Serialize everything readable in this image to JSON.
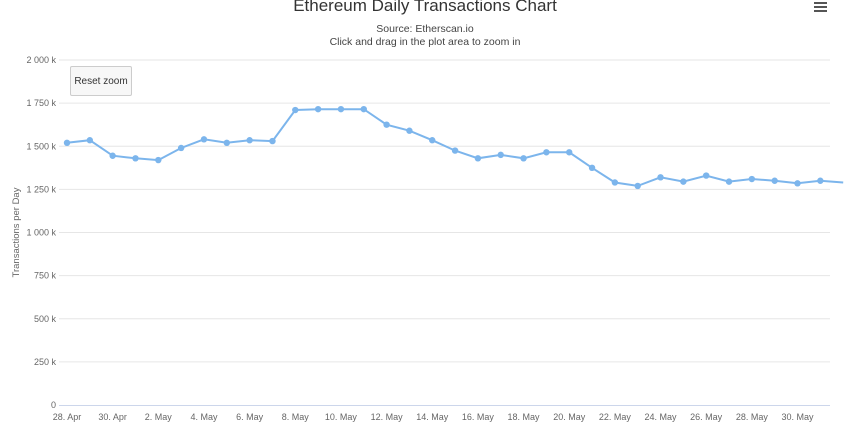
{
  "header": {
    "title": "Ethereum Daily Transactions Chart",
    "source": "Source: Etherscan.io",
    "hint": "Click and drag in the plot area to zoom in"
  },
  "toolbar": {
    "reset_zoom_label": "Reset zoom",
    "menu_icon": "hamburger-menu-icon"
  },
  "colors": {
    "series": "#7cb5ec",
    "grid": "#e6e6e6",
    "axis_text": "#666666"
  },
  "chart_data": {
    "type": "line",
    "title": "Ethereum Daily Transactions Chart",
    "subtitle": "Source: Etherscan.io",
    "xlabel": "",
    "ylabel": "Transactions per Day",
    "ylim": [
      0,
      2000000
    ],
    "y_ticks": [
      {
        "value": 0,
        "label": "0"
      },
      {
        "value": 250000,
        "label": "250 k"
      },
      {
        "value": 500000,
        "label": "500 k"
      },
      {
        "value": 750000,
        "label": "750 k"
      },
      {
        "value": 1000000,
        "label": "1 000 k"
      },
      {
        "value": 1250000,
        "label": "1 250 k"
      },
      {
        "value": 1500000,
        "label": "1 500 k"
      },
      {
        "value": 1750000,
        "label": "1 750 k"
      },
      {
        "value": 2000000,
        "label": "2 000 k"
      }
    ],
    "x_ticks": [
      "28. Apr",
      "30. Apr",
      "2. May",
      "4. May",
      "6. May",
      "8. May",
      "10. May",
      "12. May",
      "14. May",
      "16. May",
      "18. May",
      "20. May",
      "22. May",
      "24. May",
      "26. May",
      "28. May",
      "30. May"
    ],
    "grid": true,
    "legend": "none",
    "series": [
      {
        "x": [
          "28. Apr",
          "29. Apr",
          "30. Apr",
          "1. May",
          "2. May",
          "3. May",
          "4. May",
          "5. May",
          "6. May",
          "7. May",
          "8. May",
          "9. May",
          "10. May",
          "11. May",
          "12. May",
          "13. May",
          "14. May",
          "15. May",
          "16. May",
          "17. May",
          "18. May",
          "19. May",
          "20. May",
          "21. May",
          "22. May",
          "23. May",
          "24. May",
          "25. May",
          "26. May",
          "27. May",
          "28. May",
          "29. May",
          "30. May",
          "31. May",
          "1. Jun"
        ],
        "values": [
          1520000,
          1535000,
          1445000,
          1430000,
          1420000,
          1490000,
          1540000,
          1520000,
          1535000,
          1530000,
          1710000,
          1715000,
          1715000,
          1715000,
          1625000,
          1590000,
          1535000,
          1475000,
          1430000,
          1450000,
          1430000,
          1465000,
          1465000,
          1375000,
          1290000,
          1270000,
          1320000,
          1295000,
          1330000,
          1295000,
          1310000,
          1300000,
          1285000,
          1300000,
          1290000
        ]
      }
    ]
  }
}
